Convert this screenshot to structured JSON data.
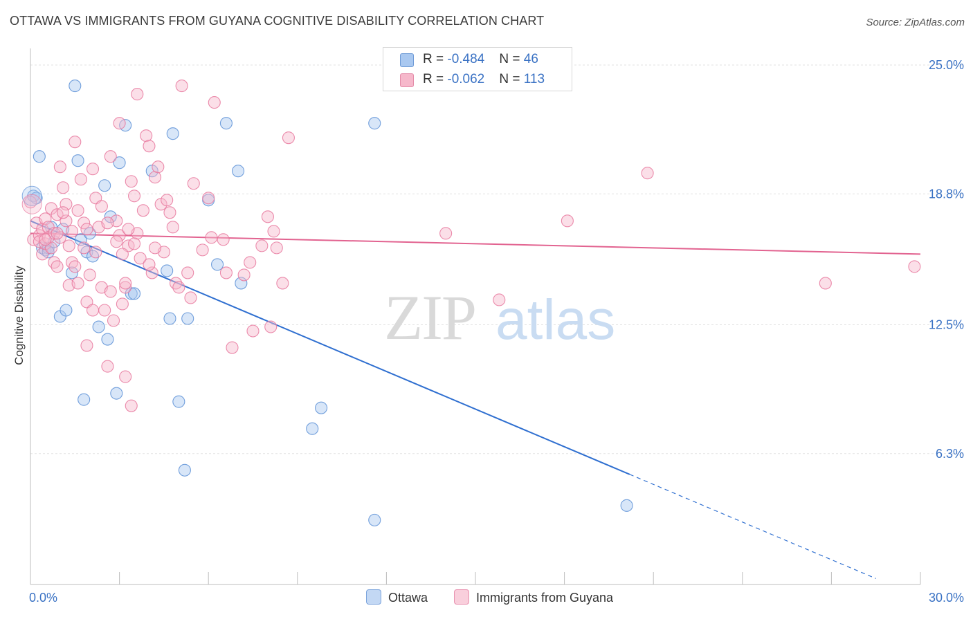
{
  "title": "OTTAWA VS IMMIGRANTS FROM GUYANA COGNITIVE DISABILITY CORRELATION CHART",
  "source": "Source: ZipAtlas.com",
  "watermark": {
    "zip": "ZIP",
    "atlas": "atlas"
  },
  "legend_top": [
    {
      "r_label": "R = ",
      "r_value": "-0.484",
      "n_label": "N = ",
      "n_value": "46",
      "color": "#a9c8f0"
    },
    {
      "r_label": "R = ",
      "r_value": "-0.062",
      "n_label": "N = ",
      "n_value": "113",
      "color": "#f6b8cb"
    }
  ],
  "chart_data": {
    "type": "scatter",
    "title": "OTTAWA VS IMMIGRANTS FROM GUYANA COGNITIVE DISABILITY CORRELATION CHART",
    "xlabel": "",
    "ylabel": "Cognitive Disability",
    "xlim": [
      0,
      30
    ],
    "ylim": [
      0,
      25.8
    ],
    "x_tick_labels": [
      "0.0%",
      "30.0%"
    ],
    "y_ticks": [
      6.3,
      12.5,
      18.8,
      25.0
    ],
    "y_tick_labels": [
      "6.3%",
      "12.5%",
      "18.8%",
      "25.0%"
    ],
    "grid": "horizontal dashed",
    "legend": "top-center and bottom",
    "series": [
      {
        "name": "Ottawa",
        "color": "#5b8fd6",
        "fill": "#a9c8f0",
        "trend": {
          "x0": 0.0,
          "y0": 17.5,
          "x1": 20.2,
          "y1": 5.3,
          "dashed_to_x": 28.5
        },
        "points": [
          [
            0.1,
            18.7
          ],
          [
            0.2,
            18.6
          ],
          [
            0.3,
            20.6
          ],
          [
            0.4,
            16.2
          ],
          [
            0.5,
            16.1
          ],
          [
            0.6,
            16.2
          ],
          [
            0.6,
            16.0
          ],
          [
            0.7,
            17.2
          ],
          [
            0.8,
            16.5
          ],
          [
            1.0,
            12.9
          ],
          [
            1.1,
            17.1
          ],
          [
            1.2,
            13.2
          ],
          [
            1.4,
            15.0
          ],
          [
            1.5,
            24.0
          ],
          [
            1.6,
            20.4
          ],
          [
            1.7,
            16.6
          ],
          [
            1.8,
            8.9
          ],
          [
            1.9,
            16.0
          ],
          [
            2.0,
            16.9
          ],
          [
            2.1,
            15.8
          ],
          [
            2.3,
            12.4
          ],
          [
            2.5,
            19.2
          ],
          [
            2.6,
            11.8
          ],
          [
            2.7,
            17.7
          ],
          [
            2.9,
            9.2
          ],
          [
            3.0,
            20.3
          ],
          [
            3.2,
            22.1
          ],
          [
            3.4,
            14.0
          ],
          [
            3.5,
            14.0
          ],
          [
            4.1,
            19.9
          ],
          [
            4.6,
            15.1
          ],
          [
            4.7,
            12.8
          ],
          [
            4.8,
            21.7
          ],
          [
            5.0,
            8.8
          ],
          [
            5.2,
            5.5
          ],
          [
            5.3,
            12.8
          ],
          [
            6.0,
            18.5
          ],
          [
            6.3,
            15.4
          ],
          [
            6.6,
            22.2
          ],
          [
            7.0,
            19.9
          ],
          [
            7.1,
            14.5
          ],
          [
            9.5,
            7.5
          ],
          [
            9.8,
            8.5
          ],
          [
            11.6,
            3.1
          ],
          [
            11.6,
            22.2
          ],
          [
            20.1,
            3.8
          ]
        ]
      },
      {
        "name": "Immigrants from Guyana",
        "color": "#e8789e",
        "fill": "#f6b8cb",
        "trend": {
          "x0": 0.0,
          "y0": 16.9,
          "x1": 30.0,
          "y1": 15.9
        },
        "points": [
          [
            0.0,
            18.4
          ],
          [
            0.1,
            16.6
          ],
          [
            0.2,
            17.4
          ],
          [
            0.3,
            16.8
          ],
          [
            0.3,
            16.5
          ],
          [
            0.4,
            17.1
          ],
          [
            0.4,
            15.9
          ],
          [
            0.5,
            16.4
          ],
          [
            0.5,
            17.6
          ],
          [
            0.6,
            17.2
          ],
          [
            0.6,
            16.7
          ],
          [
            0.7,
            18.1
          ],
          [
            0.7,
            16.2
          ],
          [
            0.8,
            16.9
          ],
          [
            0.8,
            15.5
          ],
          [
            0.9,
            17.8
          ],
          [
            0.9,
            15.3
          ],
          [
            1.0,
            20.1
          ],
          [
            1.0,
            16.7
          ],
          [
            1.1,
            19.1
          ],
          [
            1.2,
            18.3
          ],
          [
            1.2,
            17.5
          ],
          [
            1.3,
            14.4
          ],
          [
            1.4,
            17.0
          ],
          [
            1.4,
            15.5
          ],
          [
            1.5,
            21.3
          ],
          [
            1.6,
            18.0
          ],
          [
            1.6,
            14.5
          ],
          [
            1.7,
            19.5
          ],
          [
            1.8,
            17.4
          ],
          [
            1.8,
            16.2
          ],
          [
            1.9,
            13.6
          ],
          [
            1.9,
            11.5
          ],
          [
            2.0,
            14.9
          ],
          [
            2.1,
            13.2
          ],
          [
            2.1,
            20.0
          ],
          [
            2.2,
            18.6
          ],
          [
            2.3,
            17.2
          ],
          [
            2.4,
            14.3
          ],
          [
            2.4,
            18.2
          ],
          [
            2.5,
            13.2
          ],
          [
            2.6,
            10.5
          ],
          [
            2.7,
            20.6
          ],
          [
            2.8,
            12.7
          ],
          [
            2.9,
            17.5
          ],
          [
            3.0,
            22.2
          ],
          [
            3.0,
            16.8
          ],
          [
            3.1,
            13.5
          ],
          [
            3.2,
            14.3
          ],
          [
            3.3,
            16.3
          ],
          [
            3.4,
            19.4
          ],
          [
            3.5,
            18.7
          ],
          [
            3.6,
            23.6
          ],
          [
            3.6,
            16.9
          ],
          [
            3.7,
            15.7
          ],
          [
            3.8,
            18.0
          ],
          [
            3.9,
            21.6
          ],
          [
            4.0,
            21.1
          ],
          [
            4.1,
            15.0
          ],
          [
            4.2,
            19.6
          ],
          [
            4.3,
            20.1
          ],
          [
            4.4,
            18.3
          ],
          [
            4.5,
            16.0
          ],
          [
            4.6,
            18.5
          ],
          [
            4.7,
            17.9
          ],
          [
            4.8,
            17.2
          ],
          [
            4.9,
            14.5
          ],
          [
            5.0,
            14.3
          ],
          [
            5.1,
            24.0
          ],
          [
            5.3,
            15.0
          ],
          [
            5.4,
            13.8
          ],
          [
            5.5,
            19.3
          ],
          [
            5.8,
            16.1
          ],
          [
            6.0,
            18.6
          ],
          [
            6.1,
            16.7
          ],
          [
            6.2,
            23.2
          ],
          [
            6.5,
            16.6
          ],
          [
            6.6,
            15.0
          ],
          [
            6.8,
            11.4
          ],
          [
            7.2,
            14.9
          ],
          [
            7.4,
            15.5
          ],
          [
            7.5,
            12.2
          ],
          [
            7.8,
            16.3
          ],
          [
            8.0,
            17.7
          ],
          [
            8.1,
            12.4
          ],
          [
            8.2,
            17.0
          ],
          [
            8.3,
            16.2
          ],
          [
            8.5,
            14.5
          ],
          [
            8.7,
            21.5
          ],
          [
            3.3,
            17.1
          ],
          [
            3.5,
            16.4
          ],
          [
            2.9,
            16.5
          ],
          [
            3.1,
            15.9
          ],
          [
            2.2,
            16.0
          ],
          [
            1.5,
            15.3
          ],
          [
            3.2,
            14.5
          ],
          [
            3.4,
            8.6
          ],
          [
            3.2,
            10.0
          ],
          [
            4.0,
            15.4
          ],
          [
            4.2,
            16.2
          ],
          [
            2.7,
            14.1
          ],
          [
            1.3,
            16.3
          ],
          [
            1.9,
            17.1
          ],
          [
            2.6,
            17.4
          ],
          [
            0.9,
            16.9
          ],
          [
            0.5,
            16.6
          ],
          [
            14.0,
            16.9
          ],
          [
            15.8,
            13.7
          ],
          [
            18.1,
            17.5
          ],
          [
            20.8,
            19.8
          ],
          [
            26.8,
            14.5
          ],
          [
            29.8,
            15.3
          ],
          [
            1.1,
            17.9
          ]
        ]
      }
    ]
  },
  "legend_bottom": [
    {
      "label": "Ottawa",
      "color": "#a9c8f0"
    },
    {
      "label": "Immigrants from Guyana",
      "color": "#f6b8cb"
    }
  ]
}
